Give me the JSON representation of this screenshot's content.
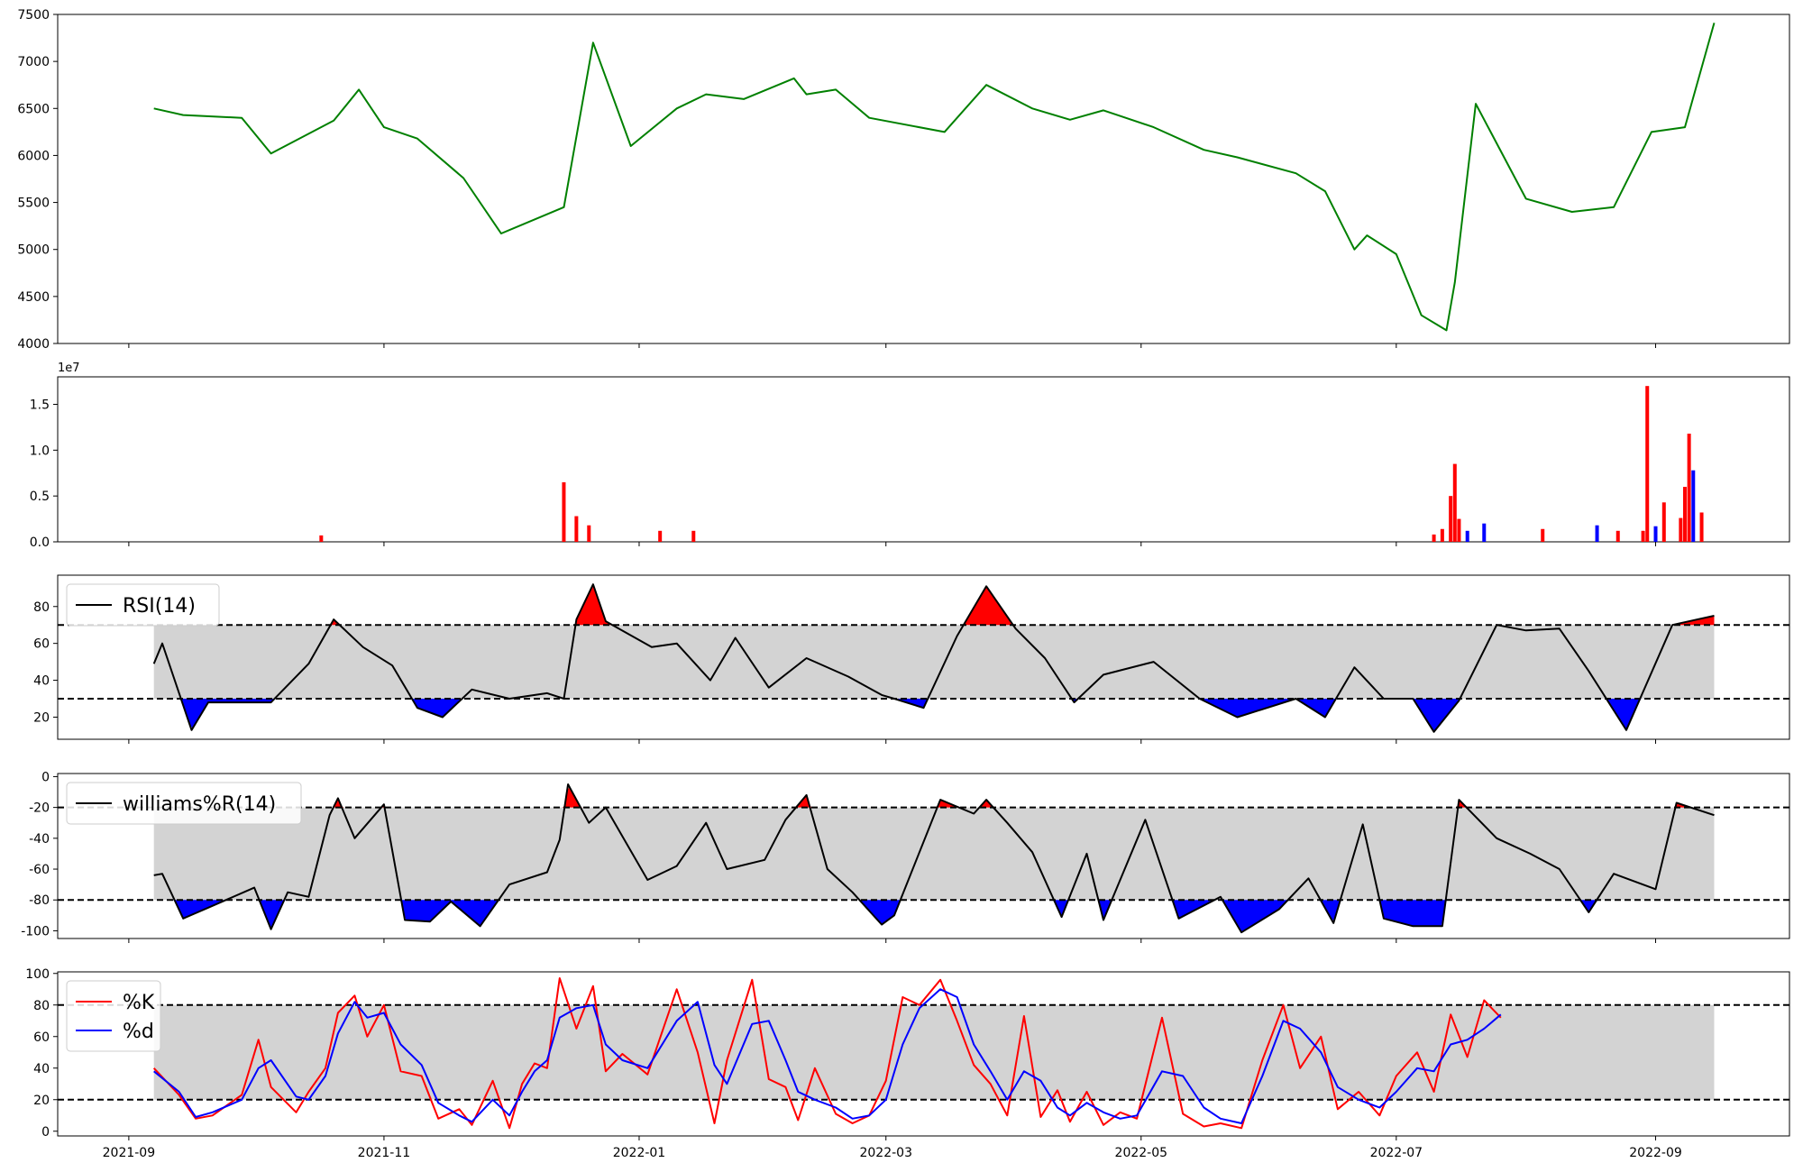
{
  "colors": {
    "price_line": "#008000",
    "volume_up": "#ff0000",
    "volume_down": "#0000ff",
    "overbought_fill": "#ff0000",
    "oversold_fill": "#0000ff",
    "band_fill": "#d3d3d3",
    "rsi_line": "#000000",
    "k_line": "#ff0000",
    "d_line": "#0000ff"
  },
  "x_axis": {
    "ticks": [
      "2021-09",
      "2021-11",
      "2022-01",
      "2022-03",
      "2022-05",
      "2022-07",
      "2022-09"
    ]
  },
  "chart_data": [
    {
      "type": "line",
      "panel": "price",
      "x": [
        "2021-09-07",
        "2021-09-14",
        "2021-09-28",
        "2021-10-05",
        "2021-10-20",
        "2021-10-26",
        "2021-11-01",
        "2021-11-09",
        "2021-11-20",
        "2021-11-29",
        "2021-12-14",
        "2021-12-21",
        "2021-12-30",
        "2022-01-10",
        "2022-01-17",
        "2022-01-26",
        "2022-02-07",
        "2022-02-10",
        "2022-02-17",
        "2022-02-25",
        "2022-03-15",
        "2022-03-25",
        "2022-04-05",
        "2022-04-14",
        "2022-04-22",
        "2022-05-04",
        "2022-05-16",
        "2022-05-24",
        "2022-06-07",
        "2022-06-14",
        "2022-06-21",
        "2022-06-24",
        "2022-07-01",
        "2022-07-07",
        "2022-07-13",
        "2022-07-15",
        "2022-07-20",
        "2022-08-01",
        "2022-08-12",
        "2022-08-22",
        "2022-08-31",
        "2022-09-08",
        "2022-09-15"
      ],
      "values": [
        6500,
        6430,
        6400,
        6020,
        6370,
        6700,
        6300,
        6180,
        5760,
        5170,
        5450,
        7200,
        6100,
        6500,
        6650,
        6600,
        6820,
        6650,
        6700,
        6400,
        6250,
        6750,
        6500,
        6380,
        6480,
        6300,
        6060,
        5980,
        5810,
        5620,
        5000,
        5150,
        4950,
        4300,
        4140,
        4650,
        6550,
        5540,
        5400,
        5450,
        6250,
        6300,
        7410
      ],
      "ylim": [
        4000,
        7500
      ],
      "yticks": [
        "4000",
        "4500",
        "5000",
        "5500",
        "6000",
        "6500",
        "7000",
        "7500"
      ]
    },
    {
      "type": "bar",
      "panel": "volume",
      "offset_label": "1e7",
      "x": [
        "2021-10-17",
        "2021-12-14",
        "2021-12-17",
        "2021-12-20",
        "2022-01-06",
        "2022-01-14",
        "2022-07-10",
        "2022-07-12",
        "2022-07-14",
        "2022-07-15",
        "2022-07-16",
        "2022-07-18",
        "2022-07-22",
        "2022-08-05",
        "2022-08-18",
        "2022-08-23",
        "2022-08-29",
        "2022-08-30",
        "2022-09-01",
        "2022-09-03",
        "2022-09-07",
        "2022-09-08",
        "2022-09-09",
        "2022-09-10",
        "2022-09-12"
      ],
      "values": [
        0.07,
        0.65,
        0.28,
        0.18,
        0.12,
        0.12,
        0.08,
        0.14,
        0.5,
        0.85,
        0.25,
        0.12,
        0.2,
        0.14,
        0.18,
        0.12,
        0.12,
        1.7,
        0.17,
        0.43,
        0.26,
        0.6,
        1.18,
        0.78,
        0.32
      ],
      "up": [
        true,
        true,
        true,
        true,
        true,
        true,
        true,
        true,
        true,
        true,
        true,
        false,
        false,
        true,
        false,
        true,
        true,
        true,
        false,
        true,
        true,
        true,
        true,
        false,
        true
      ],
      "ylim": [
        0,
        1.8
      ],
      "yticks": [
        "0.0",
        "0.5",
        "1.0",
        "1.5"
      ]
    },
    {
      "type": "line",
      "panel": "rsi",
      "series": [
        {
          "name": "RSI(14)"
        }
      ],
      "x": [
        "2021-09-07",
        "2021-09-09",
        "2021-09-16",
        "2021-09-20",
        "2021-09-28",
        "2021-10-05",
        "2021-10-14",
        "2021-10-20",
        "2021-10-27",
        "2021-11-03",
        "2021-11-09",
        "2021-11-15",
        "2021-11-22",
        "2021-12-01",
        "2021-12-10",
        "2021-12-14",
        "2021-12-17",
        "2021-12-21",
        "2021-12-24",
        "2022-01-04",
        "2022-01-10",
        "2022-01-18",
        "2022-01-24",
        "2022-02-01",
        "2022-02-10",
        "2022-02-20",
        "2022-02-28",
        "2022-03-03",
        "2022-03-10",
        "2022-03-18",
        "2022-03-25",
        "2022-04-01",
        "2022-04-08",
        "2022-04-15",
        "2022-04-22",
        "2022-05-04",
        "2022-05-15",
        "2022-05-24",
        "2022-06-07",
        "2022-06-14",
        "2022-06-21",
        "2022-06-28",
        "2022-07-05",
        "2022-07-10",
        "2022-07-16",
        "2022-07-25",
        "2022-08-01",
        "2022-08-09",
        "2022-08-16",
        "2022-08-25",
        "2022-09-05",
        "2022-09-15"
      ],
      "values": [
        49,
        60,
        13,
        28,
        28,
        28,
        49,
        73,
        58,
        48,
        25,
        20,
        35,
        30,
        33,
        30,
        73,
        92,
        72,
        58,
        60,
        40,
        63,
        36,
        52,
        42,
        32,
        30,
        25,
        64,
        91,
        68,
        52,
        28,
        43,
        50,
        30,
        20,
        30,
        20,
        47,
        30,
        30,
        12,
        29,
        70,
        67,
        68,
        45,
        13,
        70,
        75
      ],
      "ylim": [
        8,
        97
      ],
      "yticks": [
        "20",
        "40",
        "60",
        "80"
      ],
      "upper": 70,
      "lower": 30
    },
    {
      "type": "line",
      "panel": "williams",
      "series": [
        {
          "name": "williams%R(14)"
        }
      ],
      "x": [
        "2021-09-07",
        "2021-09-09",
        "2021-09-14",
        "2021-09-20",
        "2021-10-01",
        "2021-10-05",
        "2021-10-09",
        "2021-10-14",
        "2021-10-19",
        "2021-10-21",
        "2021-10-25",
        "2021-11-01",
        "2021-11-06",
        "2021-11-12",
        "2021-11-17",
        "2021-11-24",
        "2021-12-01",
        "2021-12-10",
        "2021-12-13",
        "2021-12-15",
        "2021-12-20",
        "2021-12-24",
        "2022-01-03",
        "2022-01-10",
        "2022-01-17",
        "2022-01-22",
        "2022-01-31",
        "2022-02-05",
        "2022-02-10",
        "2022-02-15",
        "2022-02-21",
        "2022-02-28",
        "2022-03-03",
        "2022-03-14",
        "2022-03-22",
        "2022-03-25",
        "2022-03-30",
        "2022-04-05",
        "2022-04-12",
        "2022-04-18",
        "2022-04-22",
        "2022-05-02",
        "2022-05-10",
        "2022-05-20",
        "2022-05-25",
        "2022-06-03",
        "2022-06-10",
        "2022-06-16",
        "2022-06-23",
        "2022-06-28",
        "2022-07-05",
        "2022-07-12",
        "2022-07-16",
        "2022-07-25",
        "2022-08-02",
        "2022-08-09",
        "2022-08-16",
        "2022-08-22",
        "2022-09-01",
        "2022-09-06",
        "2022-09-15"
      ],
      "values": [
        -64,
        -63,
        -92,
        -85,
        -72,
        -99,
        -75,
        -78,
        -25,
        -14,
        -40,
        -18,
        -93,
        -94,
        -81,
        -97,
        -70,
        -62,
        -41,
        -5,
        -30,
        -20,
        -67,
        -58,
        -30,
        -60,
        -54,
        -28,
        -12,
        -60,
        -75,
        -96,
        -90,
        -15,
        -24,
        -15,
        -30,
        -49,
        -91,
        -50,
        -93,
        -28,
        -92,
        -78,
        -101,
        -86,
        -66,
        -95,
        -31,
        -92,
        -97,
        -97,
        -15,
        -40,
        -50,
        -60,
        -88,
        -63,
        -73,
        -17,
        -25
      ],
      "ylim": [
        -105,
        2
      ],
      "yticks": [
        "-100",
        "-80",
        "-60",
        "-40",
        "-20",
        "0"
      ],
      "upper": -20,
      "lower": -80
    },
    {
      "type": "line",
      "panel": "stochastic",
      "series": [
        {
          "name": "%K",
          "values": [
            40,
            23,
            8,
            10,
            23,
            58,
            28,
            12,
            25,
            40,
            75,
            86,
            60,
            80,
            38,
            35,
            8,
            14,
            4,
            32,
            2,
            30,
            43,
            40,
            97,
            65,
            92,
            38,
            49,
            36,
            90,
            50,
            5,
            45,
            96,
            33,
            28,
            7,
            40,
            11,
            5,
            10,
            32,
            85,
            80,
            96,
            70,
            42,
            30,
            10,
            73,
            9,
            26,
            6,
            25,
            4,
            12,
            8,
            72,
            11,
            3,
            5,
            2,
            45,
            80,
            40,
            60,
            14,
            25,
            10,
            35,
            50,
            25,
            74,
            47,
            83,
            72
          ],
          "x": [
            "2021-09-07",
            "2021-09-13",
            "2021-09-17",
            "2021-09-21",
            "2021-09-28",
            "2021-10-02",
            "2021-10-05",
            "2021-10-11",
            "2021-10-14",
            "2021-10-18",
            "2021-10-21",
            "2021-10-25",
            "2021-10-28",
            "2021-11-01",
            "2021-11-05",
            "2021-11-10",
            "2021-11-14",
            "2021-11-19",
            "2021-11-22",
            "2021-11-27",
            "2021-12-01",
            "2021-12-04",
            "2021-12-07",
            "2021-12-10",
            "2021-12-13",
            "2021-12-17",
            "2021-12-21",
            "2021-12-24",
            "2021-12-28",
            "2022-01-03",
            "2022-01-10",
            "2022-01-15",
            "2022-01-19",
            "2022-01-22",
            "2022-01-28",
            "2022-02-01",
            "2022-02-05",
            "2022-02-08",
            "2022-02-12",
            "2022-02-17",
            "2022-02-21",
            "2022-02-25",
            "2022-03-01",
            "2022-03-05",
            "2022-03-09",
            "2022-03-14",
            "2022-03-18",
            "2022-03-22",
            "2022-03-26",
            "2022-03-30",
            "2022-04-03",
            "2022-04-07",
            "2022-04-11",
            "2022-04-14",
            "2022-04-18",
            "2022-04-22",
            "2022-04-26",
            "2022-04-30",
            "2022-05-06",
            "2022-05-11",
            "2022-05-16",
            "2022-05-20",
            "2022-05-25",
            "2022-05-30",
            "2022-06-04",
            "2022-06-08",
            "2022-06-13",
            "2022-06-17",
            "2022-06-22",
            "2022-06-27",
            "2022-07-01",
            "2022-07-06",
            "2022-07-10",
            "2022-07-14",
            "2022-07-18",
            "2022-07-22",
            "2022-07-26"
          ]
        },
        {
          "name": "%d",
          "values": [
            38,
            25,
            9,
            12,
            20,
            40,
            45,
            22,
            20,
            35,
            62,
            82,
            72,
            75,
            55,
            42,
            18,
            10,
            6,
            20,
            10,
            25,
            38,
            45,
            72,
            78,
            80,
            55,
            45,
            40,
            70,
            82,
            42,
            30,
            68,
            70,
            45,
            25,
            20,
            15,
            8,
            10,
            20,
            55,
            78,
            90,
            85,
            55,
            38,
            20,
            38,
            32,
            15,
            10,
            18,
            12,
            8,
            10,
            38,
            35,
            15,
            8,
            5,
            35,
            70,
            65,
            50,
            28,
            20,
            15,
            25,
            40,
            38,
            55,
            58,
            65,
            74
          ],
          "x": [
            "2021-09-07",
            "2021-09-13",
            "2021-09-17",
            "2021-09-21",
            "2021-09-28",
            "2021-10-02",
            "2021-10-05",
            "2021-10-11",
            "2021-10-14",
            "2021-10-18",
            "2021-10-21",
            "2021-10-25",
            "2021-10-28",
            "2021-11-01",
            "2021-11-05",
            "2021-11-10",
            "2021-11-14",
            "2021-11-19",
            "2021-11-22",
            "2021-11-27",
            "2021-12-01",
            "2021-12-04",
            "2021-12-07",
            "2021-12-10",
            "2021-12-13",
            "2021-12-17",
            "2021-12-21",
            "2021-12-24",
            "2021-12-28",
            "2022-01-03",
            "2022-01-10",
            "2022-01-15",
            "2022-01-19",
            "2022-01-22",
            "2022-01-28",
            "2022-02-01",
            "2022-02-05",
            "2022-02-08",
            "2022-02-12",
            "2022-02-17",
            "2022-02-21",
            "2022-02-25",
            "2022-03-01",
            "2022-03-05",
            "2022-03-09",
            "2022-03-14",
            "2022-03-18",
            "2022-03-22",
            "2022-03-26",
            "2022-03-30",
            "2022-04-03",
            "2022-04-07",
            "2022-04-11",
            "2022-04-14",
            "2022-04-18",
            "2022-04-22",
            "2022-04-26",
            "2022-04-30",
            "2022-05-06",
            "2022-05-11",
            "2022-05-16",
            "2022-05-20",
            "2022-05-25",
            "2022-05-30",
            "2022-06-04",
            "2022-06-08",
            "2022-06-13",
            "2022-06-17",
            "2022-06-22",
            "2022-06-27",
            "2022-07-01",
            "2022-07-06",
            "2022-07-10",
            "2022-07-14",
            "2022-07-18",
            "2022-07-22",
            "2022-07-26"
          ]
        }
      ],
      "ylim": [
        -3,
        101
      ],
      "yticks": [
        "0",
        "20",
        "40",
        "60",
        "80",
        "100"
      ],
      "upper": 80,
      "lower": 20
    }
  ]
}
